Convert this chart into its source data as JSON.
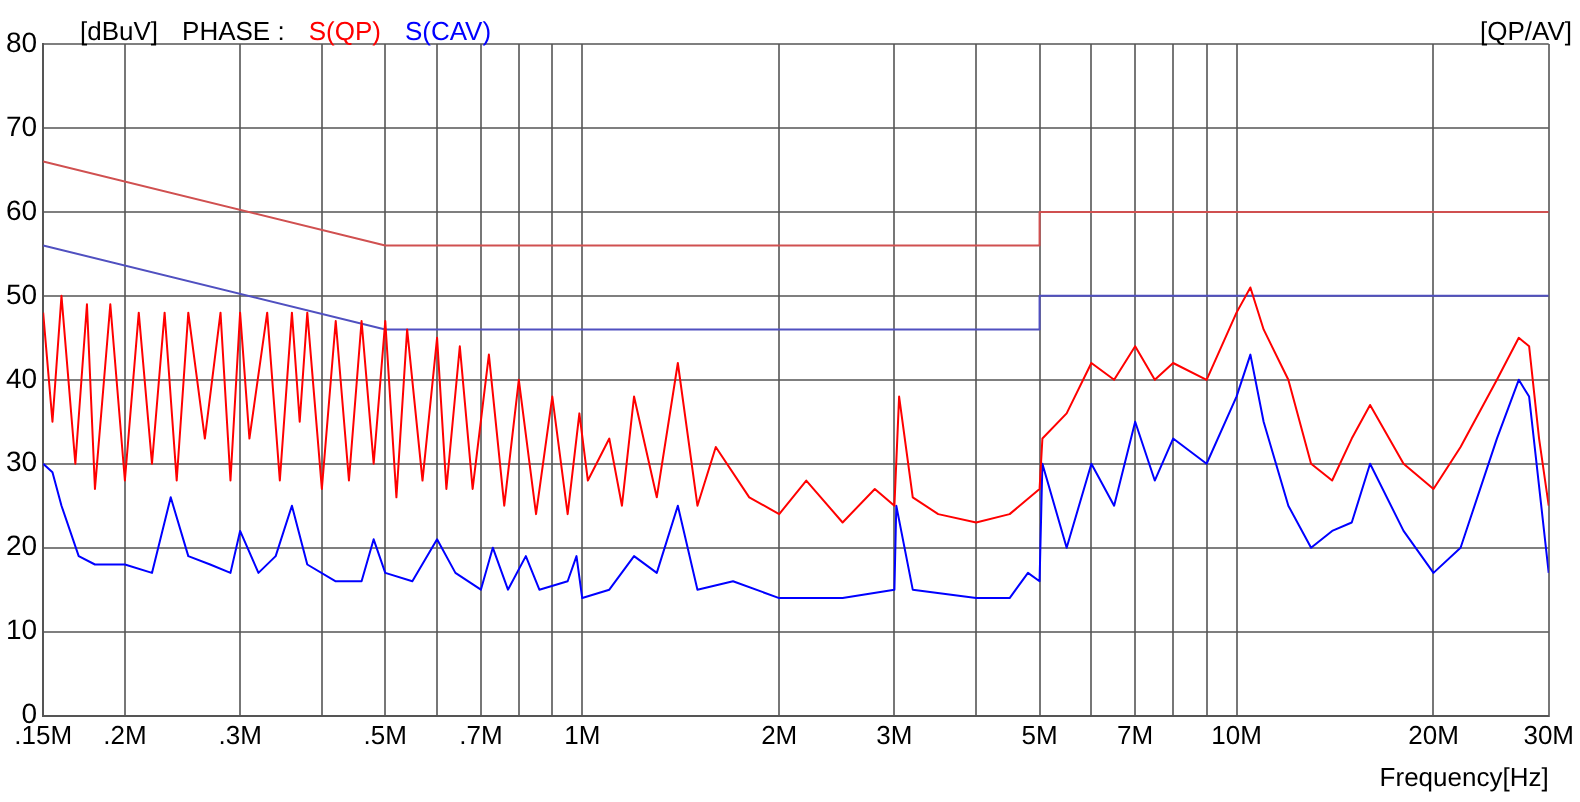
{
  "chart_data": {
    "type": "line",
    "ylabel": "[dBuV]",
    "xlabel": "Frequency[Hz]",
    "legend_title": "PHASE :",
    "legend": "top left",
    "annotations": [
      "[QP/AV]"
    ],
    "log": "x",
    "grid": true,
    "marker": "none",
    "line_style": "solid",
    "xlim": [
      0.15,
      30
    ],
    "xticks": [
      {
        "value": 0.15,
        "label": ".15M"
      },
      {
        "value": 0.2,
        "label": ".2M"
      },
      {
        "value": 0.3,
        "label": ".3M"
      },
      {
        "value": 0.4,
        "label": null
      },
      {
        "value": 0.5,
        "label": ".5M"
      },
      {
        "value": 0.6,
        "label": null
      },
      {
        "value": 0.7,
        "label": ".7M"
      },
      {
        "value": 0.8,
        "label": null
      },
      {
        "value": 0.9,
        "label": null
      },
      {
        "value": 1,
        "label": "1M"
      },
      {
        "value": 2,
        "label": "2M"
      },
      {
        "value": 3,
        "label": "3M"
      },
      {
        "value": 4,
        "label": null
      },
      {
        "value": 5,
        "label": "5M"
      },
      {
        "value": 6,
        "label": null
      },
      {
        "value": 7,
        "label": "7M"
      },
      {
        "value": 8,
        "label": null
      },
      {
        "value": 9,
        "label": null
      },
      {
        "value": 10,
        "label": "10M"
      },
      {
        "value": 20,
        "label": "20M"
      },
      {
        "value": 30,
        "label": "30M"
      }
    ],
    "ylim": [
      0,
      80
    ],
    "yticks": [
      0,
      10,
      20,
      30,
      40,
      50,
      60,
      70,
      80
    ],
    "series": [
      {
        "name": "S(QP)",
        "color": "#ff0000",
        "x": [
          0.15,
          0.155,
          0.16,
          0.168,
          0.175,
          0.18,
          0.19,
          0.2,
          0.21,
          0.22,
          0.23,
          0.24,
          0.25,
          0.265,
          0.28,
          0.29,
          0.3,
          0.31,
          0.33,
          0.345,
          0.36,
          0.37,
          0.38,
          0.4,
          0.42,
          0.44,
          0.46,
          0.48,
          0.5,
          0.52,
          0.54,
          0.57,
          0.6,
          0.62,
          0.65,
          0.68,
          0.72,
          0.76,
          0.8,
          0.85,
          0.9,
          0.95,
          0.99,
          1.02,
          1.1,
          1.15,
          1.2,
          1.3,
          1.4,
          1.5,
          1.6,
          1.8,
          2.0,
          2.2,
          2.5,
          2.8,
          3.0,
          3.05,
          3.2,
          3.5,
          4.0,
          4.5,
          5.0,
          5.05,
          5.5,
          6.0,
          6.5,
          7,
          7.5,
          8,
          9,
          10,
          10.5,
          11,
          12,
          13,
          14,
          15,
          16,
          18,
          20,
          22,
          25,
          27,
          28,
          29,
          30
        ],
        "values": [
          48,
          35,
          50,
          30,
          49,
          27,
          49,
          28,
          48,
          30,
          48,
          28,
          48,
          33,
          48,
          28,
          48,
          33,
          48,
          28,
          48,
          35,
          48,
          27,
          47,
          28,
          47,
          30,
          47,
          26,
          46,
          28,
          45,
          27,
          44,
          27,
          43,
          25,
          40,
          24,
          38,
          24,
          36,
          28,
          33,
          25,
          38,
          26,
          42,
          25,
          32,
          26,
          24,
          28,
          23,
          27,
          25,
          38,
          26,
          24,
          23,
          24,
          27,
          33,
          36,
          42,
          40,
          44,
          40,
          42,
          40,
          48,
          51,
          46,
          40,
          30,
          28,
          33,
          37,
          30,
          27,
          32,
          40,
          45,
          44,
          33,
          25
        ]
      },
      {
        "name": "S(CAV)",
        "color": "#0000ff",
        "x": [
          0.15,
          0.155,
          0.16,
          0.17,
          0.18,
          0.2,
          0.22,
          0.235,
          0.25,
          0.27,
          0.29,
          0.3,
          0.32,
          0.34,
          0.36,
          0.38,
          0.42,
          0.46,
          0.48,
          0.5,
          0.55,
          0.6,
          0.64,
          0.7,
          0.73,
          0.77,
          0.82,
          0.86,
          0.95,
          0.98,
          1.0,
          1.1,
          1.2,
          1.3,
          1.4,
          1.5,
          1.7,
          2.0,
          2.5,
          3.0,
          3.02,
          3.2,
          4,
          4.5,
          4.8,
          5.0,
          5.05,
          5.5,
          6.0,
          6.5,
          7,
          7.5,
          8,
          9,
          10,
          10.5,
          11,
          12,
          13,
          14,
          15,
          16,
          18,
          20,
          22,
          25,
          27,
          28,
          30
        ],
        "values": [
          30,
          29,
          25,
          19,
          18,
          18,
          17,
          26,
          19,
          18,
          17,
          22,
          17,
          19,
          25,
          18,
          16,
          16,
          21,
          17,
          16,
          21,
          17,
          15,
          20,
          15,
          19,
          15,
          16,
          19,
          14,
          15,
          19,
          17,
          25,
          15,
          16,
          14,
          14,
          15,
          25,
          15,
          14,
          14,
          17,
          16,
          30,
          20,
          30,
          25,
          35,
          28,
          33,
          30,
          38,
          43,
          35,
          25,
          20,
          22,
          23,
          30,
          22,
          17,
          20,
          33,
          40,
          38,
          17
        ]
      },
      {
        "color": "#d05050",
        "x": [
          0.15,
          0.5,
          5,
          5,
          30
        ],
        "values": [
          66,
          56,
          56,
          60,
          60
        ]
      },
      {
        "color": "#5050c0",
        "x": [
          0.15,
          0.5,
          5,
          5,
          30
        ],
        "values": [
          56,
          46,
          46,
          50,
          50
        ]
      }
    ]
  }
}
